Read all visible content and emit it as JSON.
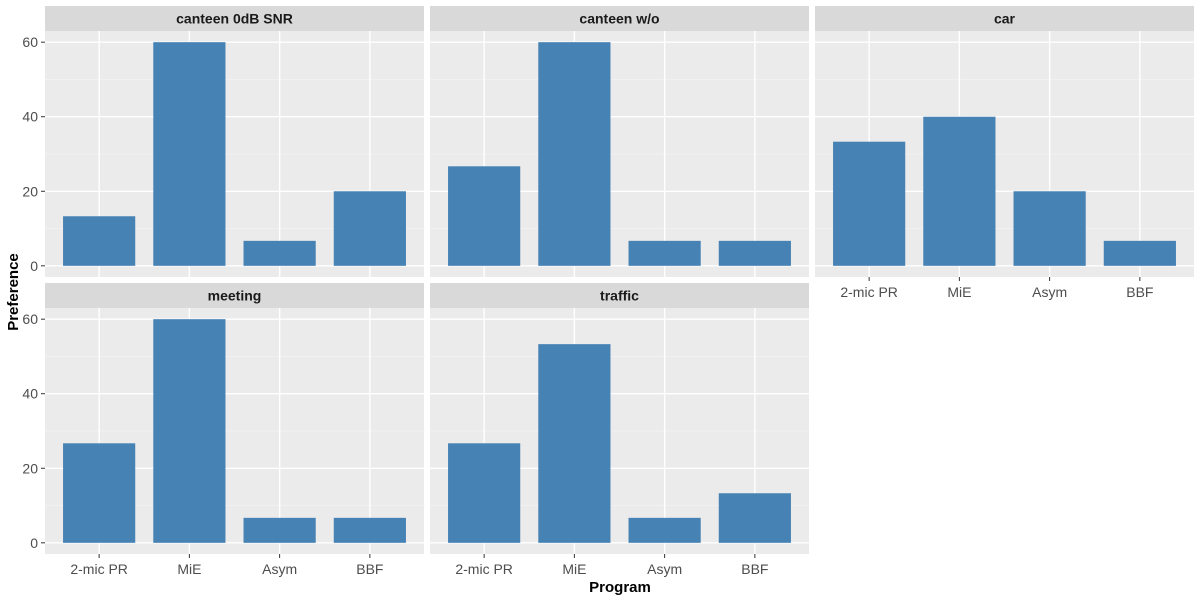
{
  "chart_data": {
    "type": "bar",
    "xlabel": "Program",
    "ylabel": "Preference",
    "categories": [
      "2-mic PR",
      "MiE",
      "Asym",
      "BBF"
    ],
    "ylim": [
      0,
      60
    ],
    "y_ticks": [
      0,
      20,
      40,
      60
    ],
    "bar_color": "#4682b4",
    "panel_background": "#ebebeb",
    "strip_background": "#d9d9d9",
    "grid": true,
    "panels": [
      {
        "title": "canteen 0dB SNR",
        "values": [
          13.3,
          60,
          6.7,
          20
        ]
      },
      {
        "title": "canteen w/o",
        "values": [
          26.7,
          60,
          6.7,
          6.7
        ]
      },
      {
        "title": "car",
        "values": [
          33.3,
          40,
          20,
          6.7
        ]
      },
      {
        "title": "meeting",
        "values": [
          26.7,
          60,
          6.7,
          6.7
        ]
      },
      {
        "title": "traffic",
        "values": [
          26.7,
          53.3,
          6.7,
          13.3
        ]
      }
    ]
  }
}
